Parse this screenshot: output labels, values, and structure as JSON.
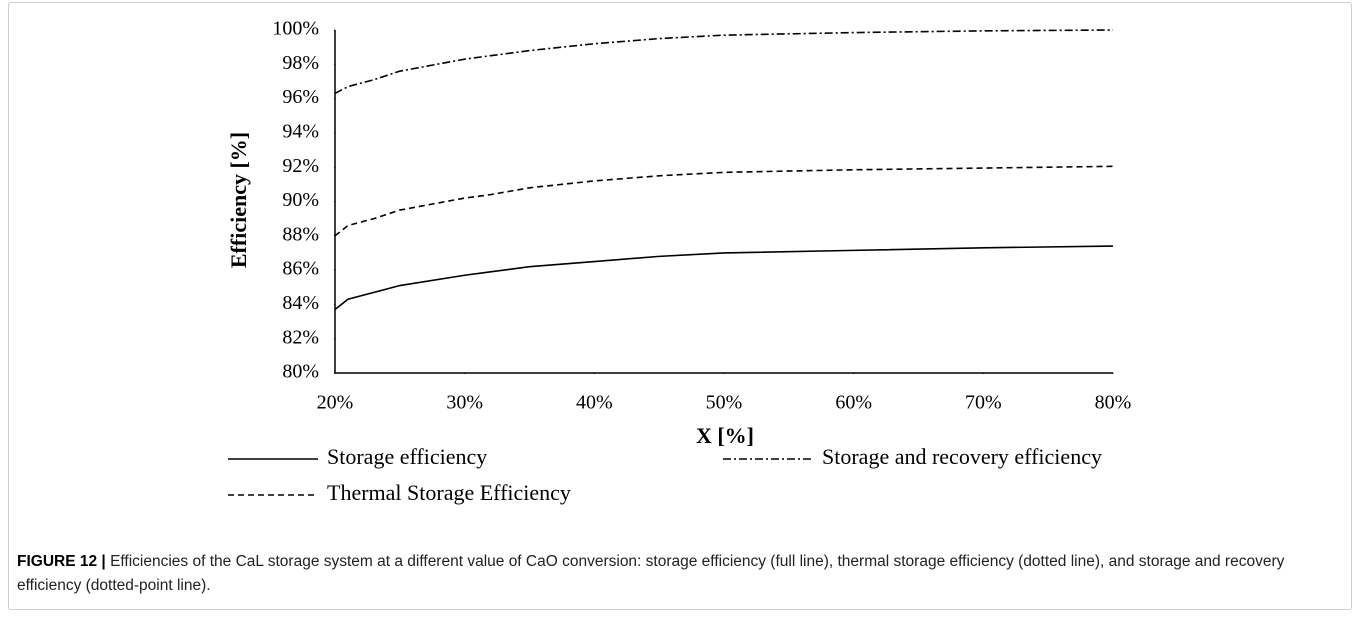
{
  "chart_data": {
    "type": "line",
    "xlabel": "X [%]",
    "ylabel": "Efficiency [%]",
    "x": [
      20,
      21,
      23,
      25,
      30,
      32,
      35,
      40,
      45,
      50,
      60,
      70,
      80
    ],
    "series": [
      {
        "name": "Storage efficiency",
        "color": "#000000",
        "dash": "solid",
        "values": [
          83.7,
          84.3,
          84.7,
          85.1,
          85.7,
          85.9,
          86.2,
          86.5,
          86.8,
          87.0,
          87.15,
          87.3,
          87.4
        ]
      },
      {
        "name": "Storage and recovery efficiency",
        "color": "#000000",
        "dash": "dashdot",
        "values": [
          96.3,
          96.7,
          97.1,
          97.6,
          98.3,
          98.5,
          98.8,
          99.2,
          99.5,
          99.7,
          99.85,
          99.95,
          100.0
        ]
      },
      {
        "name": "Thermal Storage Efficiency",
        "color": "#000000",
        "dash": "dash",
        "values": [
          88.0,
          88.6,
          89.0,
          89.5,
          90.2,
          90.4,
          90.8,
          91.2,
          91.5,
          91.7,
          91.85,
          91.95,
          92.05
        ]
      }
    ],
    "xlim": [
      20,
      80
    ],
    "xticks": [
      {
        "value": 20,
        "label": "20%"
      },
      {
        "value": 30,
        "label": "30%"
      },
      {
        "value": 40,
        "label": "40%"
      },
      {
        "value": 50,
        "label": "50%"
      },
      {
        "value": 60,
        "label": "60%"
      },
      {
        "value": 70,
        "label": "70%"
      },
      {
        "value": 80,
        "label": "80%"
      }
    ],
    "ylim": [
      80,
      100
    ],
    "yticks": [
      {
        "value": 80,
        "label": "80%"
      },
      {
        "value": 82,
        "label": "82%"
      },
      {
        "value": 84,
        "label": "84%"
      },
      {
        "value": 86,
        "label": "86%"
      },
      {
        "value": 88,
        "label": "88%"
      },
      {
        "value": 90,
        "label": "90%"
      },
      {
        "value": 92,
        "label": "92%"
      },
      {
        "value": 94,
        "label": "94%"
      },
      {
        "value": 96,
        "label": "96%"
      },
      {
        "value": 98,
        "label": "98%"
      },
      {
        "value": 100,
        "label": "100%"
      }
    ],
    "grid": false,
    "legend": "bottom"
  },
  "caption": {
    "label": "FIGURE 12 |",
    "text": "Efficiencies of the CaL storage system at a different value of CaO conversion: storage efficiency (full line), thermal storage efficiency (dotted line), and storage and recovery efficiency (dotted-point line)."
  }
}
